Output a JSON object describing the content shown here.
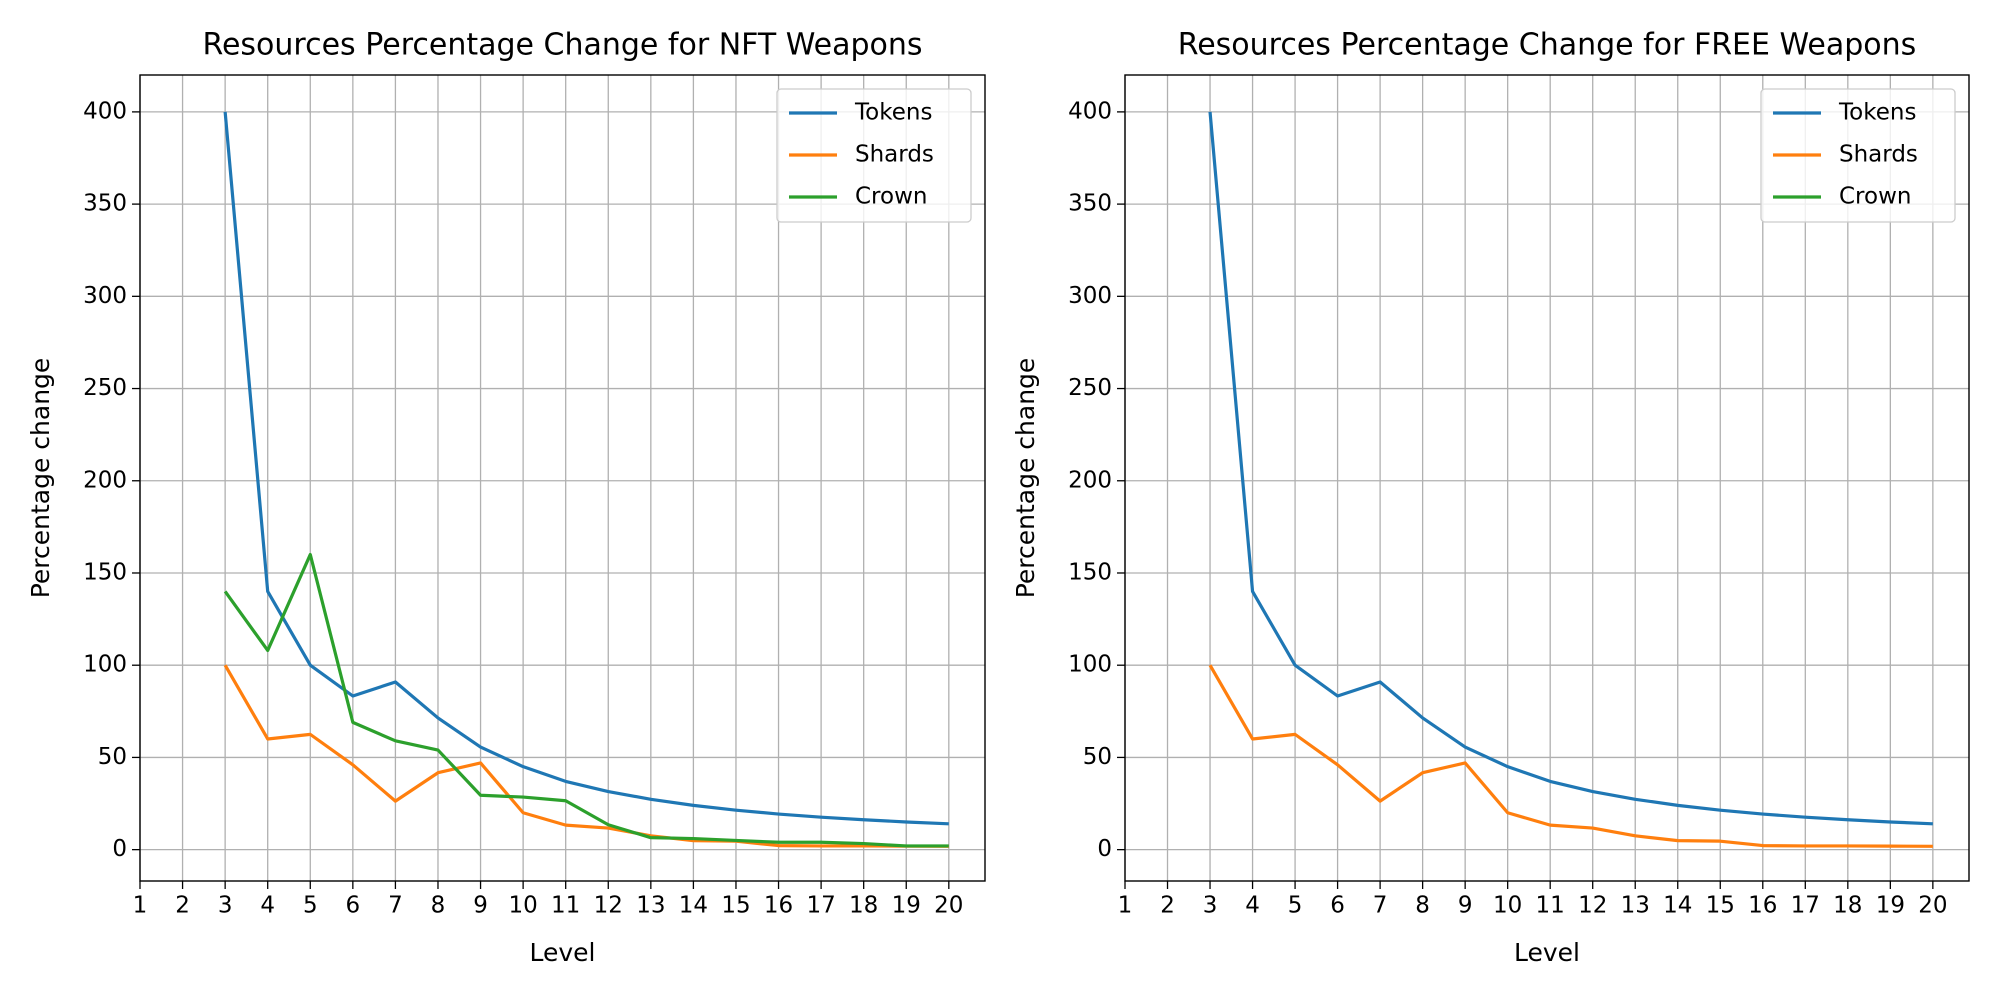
{
  "chart_data": [
    {
      "type": "line",
      "title": "Resources Percentage Change for NFT Weapons",
      "x_label": "Level",
      "y_label": "Percentage change",
      "x": [
        3,
        4,
        5,
        6,
        7,
        8,
        9,
        10,
        11,
        12,
        13,
        14,
        15,
        16,
        17,
        18,
        19,
        20
      ],
      "series": [
        {
          "name": "Tokens",
          "color": "#1f77b4",
          "values": [
            400,
            140,
            100,
            83.3,
            90.9,
            71.4,
            55.6,
            45,
            37,
            31.5,
            27.3,
            24,
            21.4,
            19.3,
            17.6,
            16.2,
            15,
            14
          ]
        },
        {
          "name": "Shards",
          "color": "#ff7f0e",
          "values": [
            100,
            60,
            62.5,
            46,
            26.3,
            41.7,
            47,
            20,
            13.3,
            11.7,
            7.5,
            4.9,
            4.6,
            2.2,
            2,
            2,
            1.9,
            1.8
          ]
        },
        {
          "name": "Crown",
          "color": "#2ca02c",
          "values": [
            140,
            108,
            160,
            69,
            59,
            54,
            29.5,
            28.5,
            26.5,
            13.5,
            6.5,
            6,
            5,
            4,
            4,
            3.3,
            2,
            2
          ]
        }
      ],
      "xlim": [
        1,
        20.85
      ],
      "xticks": [
        1,
        2,
        3,
        4,
        5,
        6,
        7,
        8,
        9,
        10,
        11,
        12,
        13,
        14,
        15,
        16,
        17,
        18,
        19,
        20
      ],
      "ylim": [
        -17,
        420
      ],
      "yticks": [
        0,
        50,
        100,
        150,
        200,
        250,
        300,
        350,
        400
      ],
      "grid": true,
      "legend": "upper right"
    },
    {
      "type": "line",
      "title": "Resources Percentage Change for FREE Weapons",
      "x_label": "Level",
      "y_label": "Percentage change",
      "x": [
        3,
        4,
        5,
        6,
        7,
        8,
        9,
        10,
        11,
        12,
        13,
        14,
        15,
        16,
        17,
        18,
        19,
        20
      ],
      "series": [
        {
          "name": "Tokens",
          "color": "#1f77b4",
          "values": [
            400,
            140,
            100,
            83.3,
            90.9,
            71.4,
            55.6,
            45,
            37,
            31.5,
            27.3,
            24,
            21.4,
            19.3,
            17.6,
            16.2,
            15,
            14
          ]
        },
        {
          "name": "Shards",
          "color": "#ff7f0e",
          "values": [
            100,
            60,
            62.5,
            46,
            26.3,
            41.7,
            47,
            20,
            13.3,
            11.7,
            7.5,
            4.9,
            4.6,
            2.2,
            2,
            2,
            1.9,
            1.8
          ]
        },
        {
          "name": "Crown",
          "color": "#2ca02c",
          "values": [
            null,
            null,
            null,
            null,
            null,
            null,
            null,
            null,
            null,
            null,
            null,
            null,
            null,
            null,
            null,
            null,
            null,
            null
          ]
        }
      ],
      "xlim": [
        1,
        20.85
      ],
      "xticks": [
        1,
        2,
        3,
        4,
        5,
        6,
        7,
        8,
        9,
        10,
        11,
        12,
        13,
        14,
        15,
        16,
        17,
        18,
        19,
        20
      ],
      "ylim": [
        -17,
        420
      ],
      "yticks": [
        0,
        50,
        100,
        150,
        200,
        250,
        300,
        350,
        400
      ],
      "grid": true,
      "legend": "upper right"
    }
  ]
}
